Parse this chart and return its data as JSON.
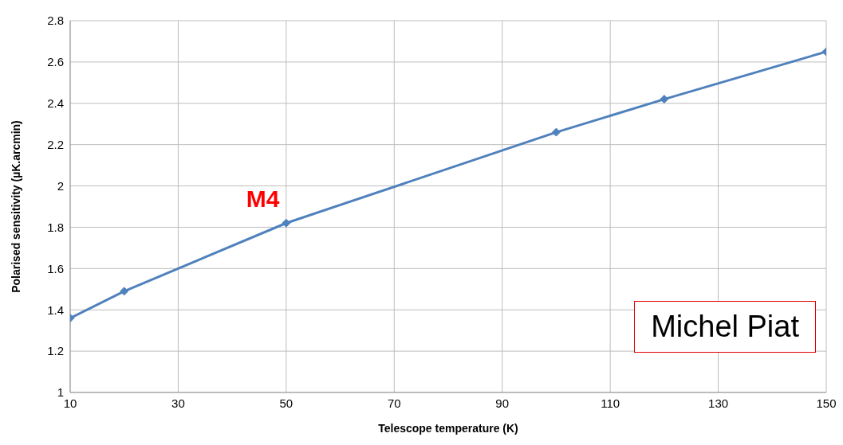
{
  "chart_data": {
    "type": "line",
    "xlabel": "Telescope temperature (K)",
    "ylabel": "Polarised sensitivity (µK.arcmin)",
    "x": [
      10,
      20,
      50,
      100,
      120,
      150
    ],
    "series": [
      {
        "color": "#4f81bd",
        "values": [
          1.36,
          1.49,
          1.82,
          2.26,
          2.42,
          2.65
        ]
      }
    ],
    "xlim": [
      10,
      150
    ],
    "xticks": [
      10,
      30,
      50,
      70,
      90,
      110,
      130,
      150
    ],
    "ylim": [
      1,
      2.8
    ],
    "yticks": [
      1,
      1.2,
      1.4,
      1.6,
      1.8,
      2,
      2.2,
      2.4,
      2.6,
      2.8
    ],
    "grid": true,
    "marker": "diamond",
    "line_style": "solid",
    "annotations": [
      {
        "text": "M4",
        "x": 50,
        "y": 1.82
      },
      "Michel Piat"
    ]
  }
}
